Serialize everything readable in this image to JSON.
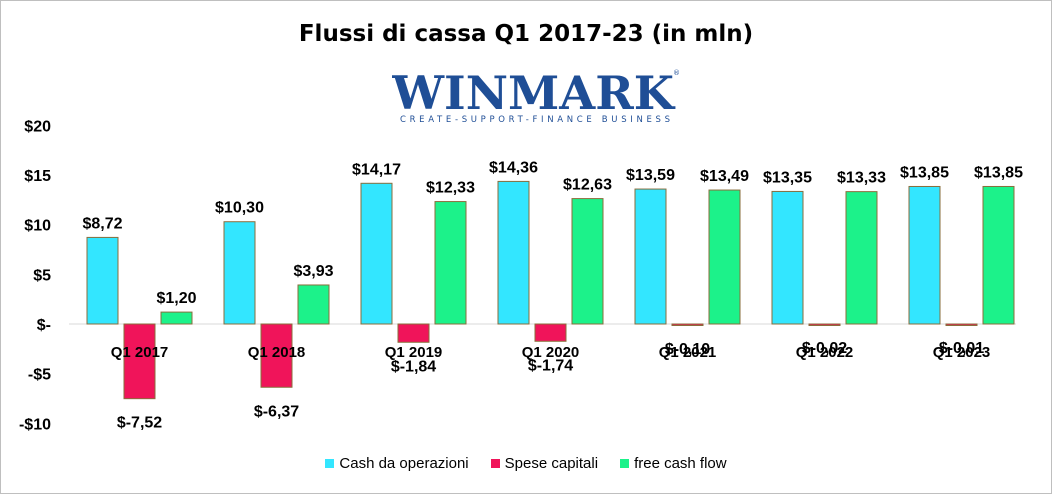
{
  "title": "Flussi di cassa Q1 2017-23 (in mln)",
  "logo": {
    "name": "WINMARK",
    "registered": "®",
    "tagline": "CREATE-SUPPORT-FINANCE BUSINESS",
    "color": "#1f4e96"
  },
  "chart_data": {
    "type": "bar",
    "categories": [
      "Q1 2017",
      "Q1 2018",
      "Q1 2019",
      "Q1 2020",
      "Q1 2021",
      "Q1 2022",
      "Q1 2023"
    ],
    "series": [
      {
        "name": "Cash da operazioni",
        "color": "#33e6ff",
        "values": [
          8.72,
          10.3,
          14.17,
          14.36,
          13.59,
          13.35,
          13.85
        ],
        "labels": [
          "$8,72",
          "$10,30",
          "$14,17",
          "$14,36",
          "$13,59",
          "$13,35",
          "$13,85"
        ]
      },
      {
        "name": "Spese capitali",
        "color": "#f0145a",
        "values": [
          -7.52,
          -6.37,
          -1.84,
          -1.74,
          -0.1,
          -0.02,
          -0.01
        ],
        "labels": [
          "$-7,52",
          "$-6,37",
          "$-1,84",
          "$-1,74",
          "$-0,10",
          "$-0,02",
          "$-0,01"
        ]
      },
      {
        "name": "free cash flow",
        "color": "#1cf28a",
        "values": [
          1.2,
          3.93,
          12.33,
          12.63,
          13.49,
          13.33,
          13.85
        ],
        "labels": [
          "$1,20",
          "$3,93",
          "$12,33",
          "$12,63",
          "$13,49",
          "$13,33",
          "$13,85"
        ]
      }
    ],
    "y_ticks": [
      20,
      15,
      10,
      5,
      0,
      -5,
      -10
    ],
    "y_tick_labels": [
      "$20",
      "$15",
      "$10",
      "$5",
      "$-",
      "-$5",
      "-$10"
    ],
    "ylim": [
      -10,
      20
    ],
    "grid": false,
    "legend_position": "bottom"
  }
}
